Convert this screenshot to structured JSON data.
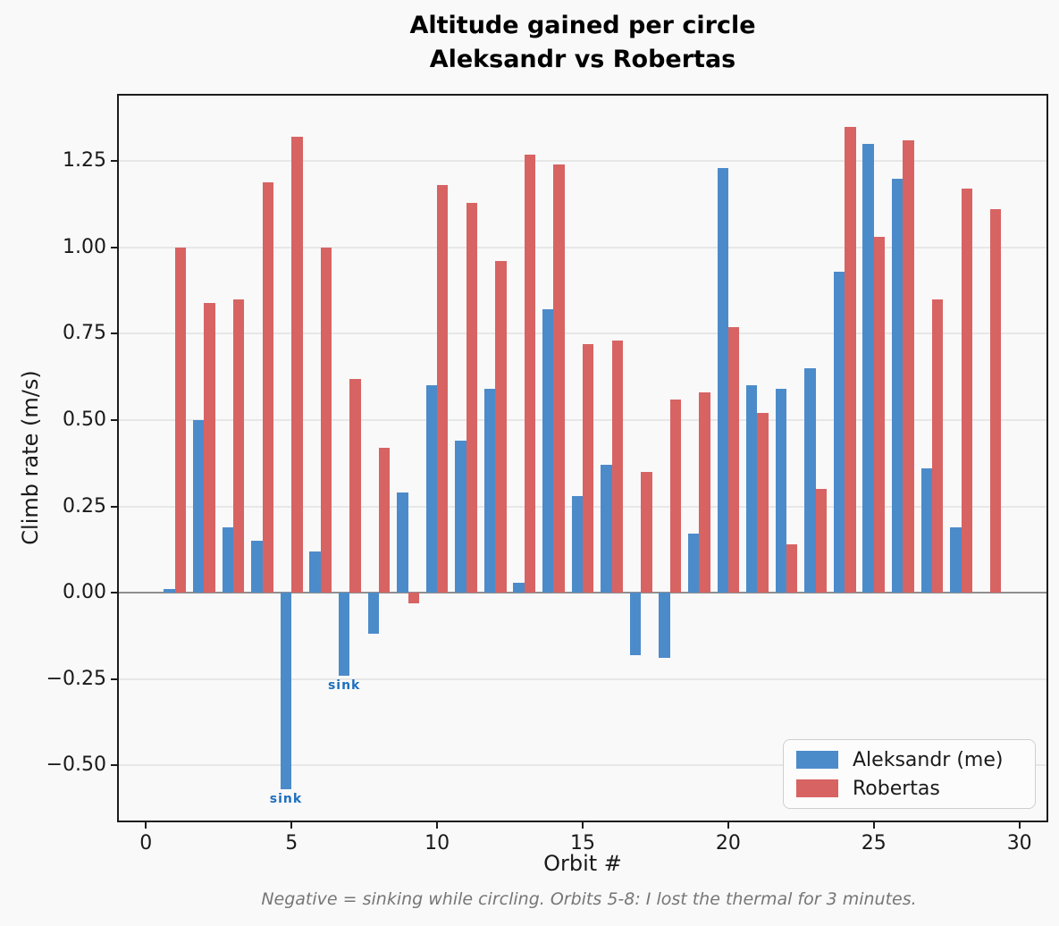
{
  "title": {
    "line1": "Altitude gained per circle",
    "line2": "Aleksandr vs Robertas"
  },
  "chart_data": {
    "type": "bar",
    "x": [
      1,
      2,
      3,
      4,
      5,
      6,
      7,
      8,
      9,
      10,
      11,
      12,
      13,
      14,
      15,
      16,
      17,
      18,
      19,
      20,
      21,
      22,
      23,
      24,
      25,
      26,
      27,
      28,
      29
    ],
    "series": [
      {
        "name": "Aleksandr (me)",
        "color": "#4c8bca",
        "values": [
          0.01,
          0.5,
          0.19,
          0.15,
          -0.57,
          0.12,
          -0.24,
          -0.12,
          0.29,
          0.6,
          0.44,
          0.59,
          0.03,
          0.82,
          0.28,
          0.37,
          -0.18,
          -0.19,
          0.17,
          1.23,
          0.6,
          0.59,
          0.65,
          0.93,
          1.3,
          1.2,
          0.36,
          0.19,
          null
        ]
      },
      {
        "name": "Robertas",
        "color": "#d86363",
        "values": [
          1.0,
          0.84,
          0.85,
          1.19,
          1.32,
          1.0,
          0.62,
          0.42,
          -0.03,
          1.18,
          1.13,
          0.96,
          1.27,
          1.24,
          0.72,
          0.73,
          0.35,
          0.56,
          0.58,
          0.77,
          0.52,
          0.14,
          0.3,
          1.35,
          1.03,
          1.31,
          0.85,
          1.17,
          1.11
        ]
      }
    ],
    "xlabel": "Orbit #",
    "ylabel": "Climb rate (m/s)",
    "xticks": [
      0,
      5,
      10,
      15,
      20,
      25,
      30
    ],
    "yticks": [
      {
        "v": 1.25,
        "label": "1.25"
      },
      {
        "v": 1.0,
        "label": "1.00"
      },
      {
        "v": 0.75,
        "label": "0.75"
      },
      {
        "v": 0.5,
        "label": "0.50"
      },
      {
        "v": 0.25,
        "label": "0.25"
      },
      {
        "v": 0.0,
        "label": "0.00"
      },
      {
        "v": -0.25,
        "label": "−0.25"
      },
      {
        "v": -0.5,
        "label": "−0.50"
      }
    ],
    "xlim": [
      -0.93,
      30.93
    ],
    "ylim": [
      -0.66,
      1.44
    ],
    "bar_width_units": 0.38,
    "grid": "horizontal-only",
    "legend_position": "lower-right",
    "annotations": [
      {
        "text": "sink",
        "orbit": 5,
        "series": 0,
        "color": "#1f6fbe"
      },
      {
        "text": "sink",
        "orbit": 7,
        "series": 0,
        "color": "#1f6fbe"
      }
    ],
    "caption": "Negative = sinking while circling. Orbits 5-8: I lost the thermal for 3 minutes."
  }
}
